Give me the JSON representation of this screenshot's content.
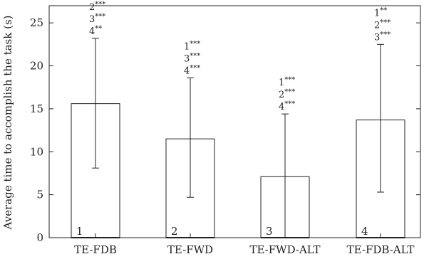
{
  "chart_data": {
    "type": "bar",
    "categories": [
      "TE-FDB",
      "TE-FWD",
      "TE-FWD-ALT",
      "TE-FDB-ALT"
    ],
    "bar_numbers": [
      "1",
      "2",
      "3",
      "4"
    ],
    "values": [
      15.6,
      11.5,
      7.1,
      13.7
    ],
    "error_lower": [
      8.1,
      4.7,
      0.0,
      5.3
    ],
    "error_upper": [
      23.2,
      18.6,
      14.4,
      22.5
    ],
    "significance": [
      [
        "2***",
        "3***",
        "4**"
      ],
      [
        "1***",
        "3***",
        "4***"
      ],
      [
        "1***",
        "2***",
        "4***"
      ],
      [
        "1**",
        "2***",
        "3***"
      ]
    ],
    "ylabel": "Average time to accomplish the task (s)",
    "xlabel": "",
    "ylim": [
      0,
      27
    ],
    "yticks": [
      "0",
      "5",
      "10",
      "15",
      "20",
      "25"
    ],
    "grid": false,
    "bar_color": "#ffffff",
    "line_color": "#222222"
  }
}
